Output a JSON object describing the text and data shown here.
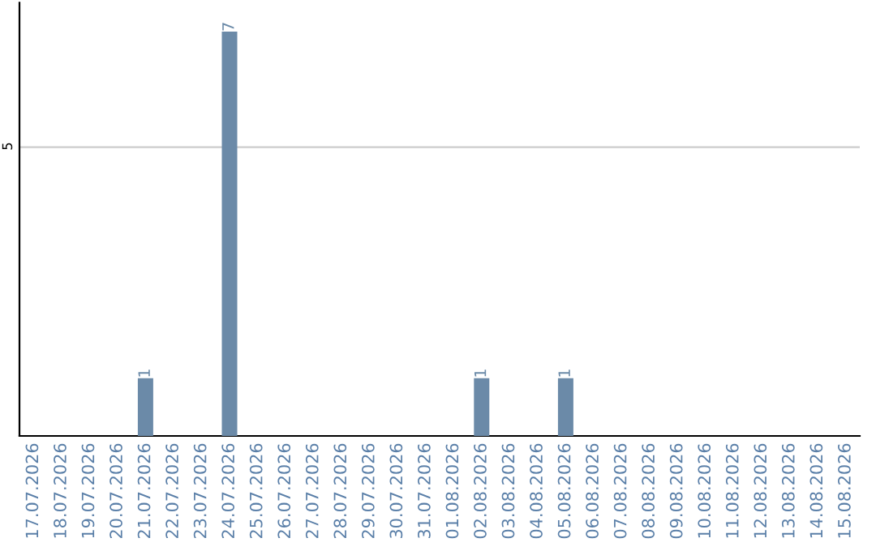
{
  "chart_data": {
    "type": "bar",
    "categories": [
      "17.07.2026",
      "18.07.2026",
      "19.07.2026",
      "20.07.2026",
      "21.07.2026",
      "22.07.2026",
      "23.07.2026",
      "24.07.2026",
      "25.07.2026",
      "26.07.2026",
      "27.07.2026",
      "28.07.2026",
      "29.07.2026",
      "30.07.2026",
      "31.07.2026",
      "01.08.2026",
      "02.08.2026",
      "03.08.2026",
      "04.08.2026",
      "05.08.2026",
      "06.08.2026",
      "07.08.2026",
      "08.08.2026",
      "09.08.2026",
      "10.08.2026",
      "11.08.2026",
      "12.08.2026",
      "13.08.2026",
      "14.08.2026",
      "15.08.2026"
    ],
    "values": [
      0,
      0,
      0,
      0,
      1,
      0,
      0,
      7,
      0,
      0,
      0,
      0,
      0,
      0,
      0,
      0,
      1,
      0,
      0,
      1,
      0,
      0,
      0,
      0,
      0,
      0,
      0,
      0,
      0,
      0
    ],
    "value_labels": [
      null,
      null,
      null,
      null,
      "1",
      null,
      null,
      "7",
      null,
      null,
      null,
      null,
      null,
      null,
      null,
      null,
      "1",
      null,
      null,
      "1",
      null,
      null,
      null,
      null,
      null,
      null,
      null,
      null,
      null,
      null
    ],
    "color": "#6b8aa8",
    "ylim": [
      0,
      7.5
    ],
    "yticks": [
      5
    ],
    "grid": "y",
    "legend": false
  }
}
